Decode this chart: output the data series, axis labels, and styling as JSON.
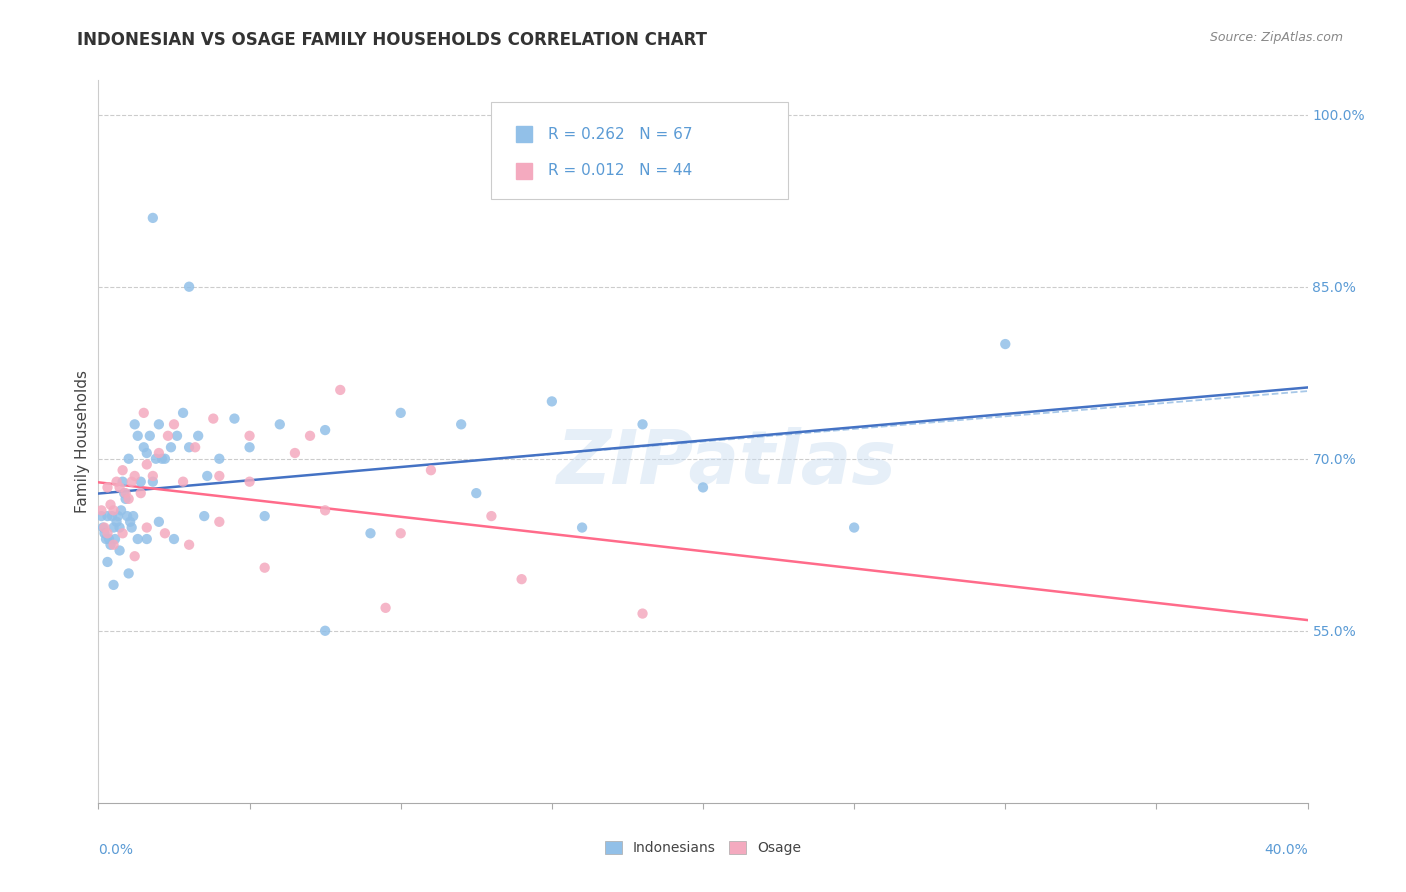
{
  "title": "INDONESIAN VS OSAGE FAMILY HOUSEHOLDS CORRELATION CHART",
  "source": "Source: ZipAtlas.com",
  "ylabel": "Family Households",
  "xmin": 0.0,
  "xmax": 40.0,
  "ymin": 40.0,
  "ymax": 103.0,
  "ytick_vals": [
    55.0,
    70.0,
    85.0,
    100.0
  ],
  "ytick_labels": [
    "55.0%",
    "70.0%",
    "85.0%",
    "100.0%"
  ],
  "legend_r1": "R = 0.262",
  "legend_n1": "N = 67",
  "legend_r2": "R = 0.012",
  "legend_n2": "N = 44",
  "color_indonesian": "#92C0E8",
  "color_osage": "#F4AABF",
  "color_trendline_indonesian": "#4472C4",
  "color_trendline_osage": "#FF6B8A",
  "color_dashed": "#A8C8E8",
  "watermark": "ZIPatlas",
  "indo_x": [
    0.1,
    0.15,
    0.2,
    0.25,
    0.3,
    0.35,
    0.4,
    0.45,
    0.5,
    0.55,
    0.6,
    0.65,
    0.7,
    0.75,
    0.8,
    0.85,
    0.9,
    0.95,
    1.0,
    1.05,
    1.1,
    1.15,
    1.2,
    1.3,
    1.4,
    1.5,
    1.6,
    1.7,
    1.8,
    1.9,
    2.0,
    2.1,
    2.2,
    2.4,
    2.6,
    2.8,
    3.0,
    3.3,
    3.6,
    4.0,
    4.5,
    5.0,
    6.0,
    7.5,
    10.0,
    12.0,
    15.0,
    18.0,
    0.3,
    0.5,
    0.7,
    1.0,
    1.3,
    1.6,
    2.0,
    2.5,
    3.5,
    5.5,
    7.5,
    9.0,
    12.5,
    16.0,
    20.0,
    25.0,
    30.0,
    1.8,
    3.0
  ],
  "indo_y": [
    65.0,
    64.0,
    63.5,
    63.0,
    65.0,
    63.0,
    62.5,
    65.0,
    64.0,
    63.0,
    64.5,
    65.0,
    64.0,
    65.5,
    68.0,
    67.0,
    66.5,
    65.0,
    70.0,
    64.5,
    64.0,
    65.0,
    73.0,
    72.0,
    68.0,
    71.0,
    70.5,
    72.0,
    68.0,
    70.0,
    73.0,
    70.0,
    70.0,
    71.0,
    72.0,
    74.0,
    71.0,
    72.0,
    68.5,
    70.0,
    73.5,
    71.0,
    73.0,
    72.5,
    74.0,
    73.0,
    75.0,
    73.0,
    61.0,
    59.0,
    62.0,
    60.0,
    63.0,
    63.0,
    64.5,
    63.0,
    65.0,
    65.0,
    55.0,
    63.5,
    67.0,
    64.0,
    67.5,
    64.0,
    80.0,
    91.0,
    85.0
  ],
  "osage_x": [
    0.1,
    0.2,
    0.3,
    0.4,
    0.5,
    0.6,
    0.7,
    0.8,
    0.9,
    1.0,
    1.1,
    1.2,
    1.4,
    1.6,
    1.8,
    2.0,
    2.3,
    2.8,
    3.2,
    4.0,
    5.0,
    6.5,
    8.0,
    11.0,
    0.3,
    0.5,
    0.8,
    1.2,
    1.6,
    2.2,
    3.0,
    4.0,
    5.5,
    7.5,
    10.0,
    14.0,
    18.0,
    1.5,
    2.5,
    3.8,
    5.0,
    7.0,
    9.5,
    13.0
  ],
  "osage_y": [
    65.5,
    64.0,
    67.5,
    66.0,
    65.5,
    68.0,
    67.5,
    69.0,
    67.0,
    66.5,
    68.0,
    68.5,
    67.0,
    69.5,
    68.5,
    70.5,
    72.0,
    68.0,
    71.0,
    68.5,
    68.0,
    70.5,
    76.0,
    69.0,
    63.5,
    62.5,
    63.5,
    61.5,
    64.0,
    63.5,
    62.5,
    64.5,
    60.5,
    65.5,
    63.5,
    59.5,
    56.5,
    74.0,
    73.0,
    73.5,
    72.0,
    72.0,
    57.0,
    65.0
  ]
}
